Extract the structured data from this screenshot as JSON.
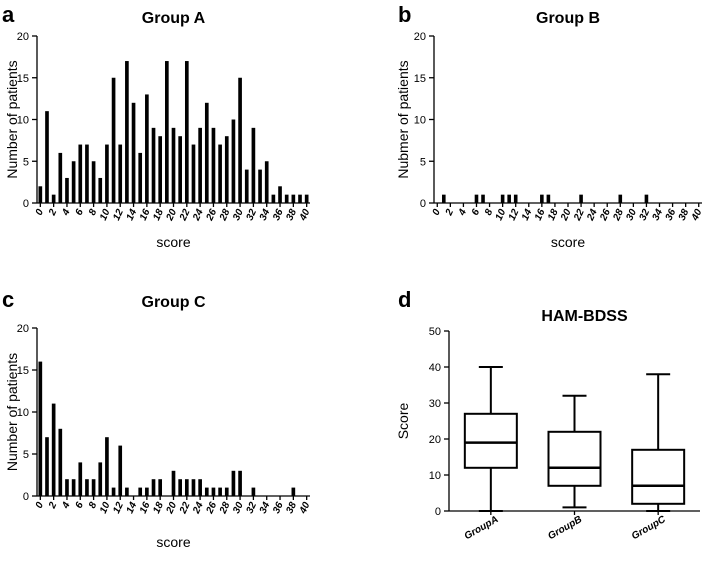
{
  "chart_data": [
    {
      "letter": "a",
      "type": "bar",
      "title": "Group A",
      "xlabel": "score",
      "ylabel": "Number of patients",
      "ylim": [
        0,
        20
      ],
      "yticks": [
        0,
        5,
        10,
        15,
        20
      ],
      "xtick_labels": [
        "0",
        "2",
        "4",
        "6",
        "8",
        "10",
        "12",
        "14",
        "16",
        "18",
        "20",
        "22",
        "24",
        "26",
        "28",
        "30",
        "32",
        "34",
        "36",
        "38",
        "40"
      ],
      "categories": [
        0,
        1,
        2,
        3,
        4,
        5,
        6,
        7,
        8,
        9,
        10,
        11,
        12,
        13,
        14,
        15,
        16,
        17,
        18,
        19,
        20,
        21,
        22,
        23,
        24,
        25,
        26,
        27,
        28,
        29,
        30,
        31,
        32,
        33,
        34,
        35,
        36,
        37,
        38,
        39,
        40
      ],
      "values": [
        2,
        11,
        1,
        6,
        3,
        5,
        7,
        7,
        5,
        3,
        7,
        15,
        7,
        17,
        12,
        6,
        13,
        9,
        8,
        17,
        9,
        8,
        17,
        7,
        9,
        12,
        9,
        7,
        8,
        10,
        15,
        4,
        9,
        4,
        5,
        1,
        2,
        1,
        1,
        1,
        1
      ]
    },
    {
      "letter": "b",
      "type": "bar",
      "title": "Group B",
      "xlabel": "score",
      "ylabel": "Nubmer of patients",
      "ylim": [
        0,
        20
      ],
      "yticks": [
        0,
        5,
        10,
        15,
        20
      ],
      "xtick_labels": [
        "0",
        "2",
        "4",
        "6",
        "8",
        "10",
        "12",
        "14",
        "16",
        "18",
        "20",
        "22",
        "24",
        "26",
        "28",
        "30",
        "32",
        "34",
        "36",
        "38",
        "40"
      ],
      "categories": [
        0,
        1,
        2,
        3,
        4,
        5,
        6,
        7,
        8,
        9,
        10,
        11,
        12,
        13,
        14,
        15,
        16,
        17,
        18,
        19,
        20,
        21,
        22,
        23,
        24,
        25,
        26,
        27,
        28,
        29,
        30,
        31,
        32,
        33,
        34,
        35,
        36,
        37,
        38,
        39,
        40
      ],
      "values": [
        0,
        1,
        0,
        0,
        0,
        0,
        1,
        1,
        0,
        0,
        1,
        1,
        1,
        0,
        0,
        0,
        1,
        1,
        0,
        0,
        0,
        0,
        1,
        0,
        0,
        0,
        0,
        0,
        1,
        0,
        0,
        0,
        1,
        0,
        0,
        0,
        0,
        0,
        0,
        0,
        0
      ]
    },
    {
      "letter": "c",
      "type": "bar",
      "title": "Group C",
      "xlabel": "score",
      "ylabel": "Number of patients",
      "ylim": [
        0,
        20
      ],
      "yticks": [
        0,
        5,
        10,
        15,
        20
      ],
      "xtick_labels": [
        "0",
        "2",
        "4",
        "6",
        "8",
        "10",
        "12",
        "14",
        "16",
        "18",
        "20",
        "22",
        "24",
        "26",
        "28",
        "30",
        "32",
        "34",
        "36",
        "38",
        "40"
      ],
      "categories": [
        0,
        1,
        2,
        3,
        4,
        5,
        6,
        7,
        8,
        9,
        10,
        11,
        12,
        13,
        14,
        15,
        16,
        17,
        18,
        19,
        20,
        21,
        22,
        23,
        24,
        25,
        26,
        27,
        28,
        29,
        30,
        31,
        32,
        33,
        34,
        35,
        36,
        37,
        38,
        39,
        40
      ],
      "values": [
        16,
        7,
        11,
        8,
        2,
        2,
        4,
        2,
        2,
        4,
        7,
        1,
        6,
        1,
        0,
        1,
        1,
        2,
        2,
        0,
        3,
        2,
        2,
        2,
        2,
        1,
        1,
        1,
        1,
        3,
        3,
        0,
        1,
        0,
        0,
        0,
        0,
        0,
        1,
        0,
        0
      ]
    },
    {
      "letter": "d",
      "type": "box",
      "title": "HAM-BDSS",
      "ylabel": "Score",
      "ylim": [
        0,
        50
      ],
      "yticks": [
        0,
        10,
        20,
        30,
        40,
        50
      ],
      "categories": [
        "GroupA",
        "GroupB",
        "GroupC"
      ],
      "boxes": [
        {
          "name": "GroupA",
          "min": 0,
          "q1": 12,
          "median": 19,
          "q3": 27,
          "max": 40
        },
        {
          "name": "GroupB",
          "min": 1,
          "q1": 7,
          "median": 12,
          "q3": 22,
          "max": 32
        },
        {
          "name": "GroupC",
          "min": 0,
          "q1": 2,
          "median": 7,
          "q3": 17,
          "max": 38
        }
      ]
    }
  ]
}
